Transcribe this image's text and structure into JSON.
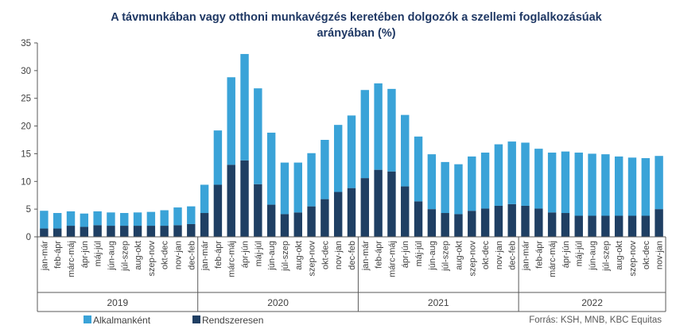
{
  "chart_data": {
    "type": "bar",
    "stacked": true,
    "title": "A távmunkában vagy otthoni munkavégzés keretében dolgozók a szellemi foglalkozásúak arányában (%)",
    "title_lines": [
      "A távmunkában vagy otthoni munkavégzés keretében dolgozók a szellemi foglalkozásúak",
      "arányában (%)"
    ],
    "ylim": [
      0,
      35
    ],
    "yticks": [
      0,
      5,
      10,
      15,
      20,
      25,
      30,
      35
    ],
    "xlabel": "",
    "ylabel": "",
    "grid": false,
    "categories": [
      "jan-már",
      "feb-ápr",
      "márc-máj",
      "ápr-jún",
      "máj-júl",
      "jún-aug",
      "júl-szep",
      "aug-okt",
      "szep-nov",
      "okt-dec",
      "nov-jan",
      "dec-feb",
      "jan-már",
      "feb-ápr",
      "márc-máj",
      "ápr-jún",
      "máj-júl",
      "jún-aug",
      "júl-szep",
      "aug-okt",
      "szep-nov",
      "okt-dec",
      "nov-jan",
      "dec-feb",
      "jan-már",
      "feb-ápr",
      "márc-máj",
      "ápr-jún",
      "máj-júl",
      "jún-aug",
      "júl-szep",
      "aug-okt",
      "szep-nov",
      "okt-dec",
      "nov-jan",
      "dec-feb",
      "jan-már",
      "feb-ápr",
      "márc-máj",
      "ápr-jún",
      "máj-júl",
      "jún-aug",
      "júl-szep",
      "aug-okt",
      "szep-nov",
      "okt-dec",
      "nov-jan"
    ],
    "groups": [
      {
        "label": "2019",
        "count": 12
      },
      {
        "label": "2020",
        "count": 12
      },
      {
        "label": "2021",
        "count": 12
      },
      {
        "label": "2022",
        "count": 11
      }
    ],
    "series": [
      {
        "name": "Rendszeresen",
        "color": "#1f3f63",
        "values": [
          1.5,
          1.5,
          2.0,
          1.8,
          2.1,
          2.0,
          2.0,
          2.0,
          2.0,
          2.0,
          2.1,
          2.3,
          4.3,
          9.4,
          13.0,
          13.8,
          9.5,
          5.8,
          4.1,
          4.4,
          5.5,
          6.8,
          8.1,
          8.8,
          10.6,
          12.1,
          11.8,
          9.1,
          6.4,
          5.0,
          4.3,
          4.1,
          4.7,
          5.1,
          5.6,
          5.9,
          5.6,
          5.1,
          4.4,
          4.3,
          3.8,
          3.8,
          3.8,
          3.8,
          3.8,
          3.8,
          5.0
        ]
      },
      {
        "name": "Alkalmanként",
        "color": "#3aa3d8",
        "values": [
          3.2,
          2.8,
          2.6,
          2.4,
          2.5,
          2.4,
          2.3,
          2.4,
          2.5,
          2.8,
          3.2,
          3.2,
          5.1,
          9.8,
          15.8,
          19.2,
          17.3,
          13.0,
          9.3,
          9.0,
          9.6,
          10.7,
          12.1,
          13.1,
          15.9,
          15.6,
          14.9,
          12.9,
          11.7,
          9.9,
          9.2,
          9.0,
          9.8,
          10.1,
          11.1,
          11.3,
          11.4,
          10.8,
          10.8,
          11.1,
          11.4,
          11.2,
          11.1,
          10.7,
          10.5,
          10.4,
          9.6
        ]
      }
    ],
    "legend": [
      "Alkalmanként",
      "Rendszeresen"
    ],
    "legend_position": "bottom-left"
  },
  "source": "Forrás: KSH, MNB, KBC Equitas"
}
